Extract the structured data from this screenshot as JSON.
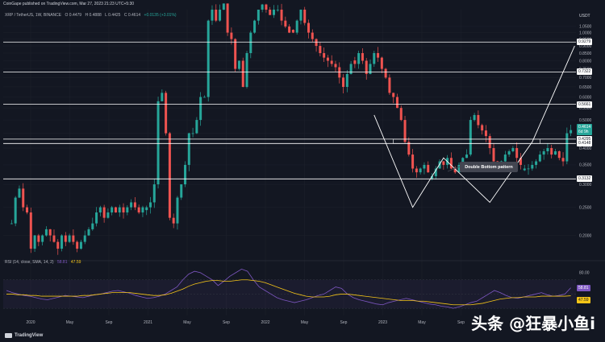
{
  "header": {
    "publisher_line": "CoinGape published on TradingView.com, Mar 27, 2023 21:23 UTC+5:30",
    "symbol": "XRP / TetherUS, 1W, BINANCE",
    "ohlc": [
      "O 0.4479",
      "H 0.4888",
      "L 0.4425",
      "C 0.4614",
      "+0.0135 (+3.01%)"
    ],
    "currency": "USDT"
  },
  "rsi_legend": {
    "label": "RSI (14, close, SMA, 14, 2)",
    "rsi_value": "58.81",
    "sma_value": "47.59"
  },
  "footer": {
    "brand": "TradingView",
    "watermark": "头条 @狂暴小鱼i"
  },
  "annotation": {
    "label": "Double Bottom pattern"
  },
  "colors": {
    "background": "#131722",
    "up": "#26a69a",
    "down": "#ef5350",
    "rsi_line": "#7e57c2",
    "rsi_sma": "#f5c518",
    "price_tag_current": "#26a69a",
    "line_white": "#ffffff"
  },
  "chart_data": [
    {
      "type": "candlestick",
      "title": "XRP / TetherUS, 1W, BINANCE",
      "ylabel": "USDT",
      "y_scale": "log",
      "ylim": [
        0.17,
        1.2
      ],
      "y_ticks": [
        "1.0500",
        "1.0000",
        "0.9500",
        "0.9000",
        "0.8500",
        "0.8000",
        "0.7500",
        "0.7000",
        "0.6500",
        "0.6000",
        "0.5500",
        "0.5000",
        "0.4500",
        "0.4000",
        "0.3500",
        "0.3000",
        "0.2500",
        "0.2000"
      ],
      "x_ticks": [
        "2020",
        "May",
        "Sep",
        "2021",
        "May",
        "Sep",
        "2022",
        "May",
        "Sep",
        "2023",
        "May",
        "Sep"
      ],
      "horizontal_levels": [
        0.9279,
        0.7322,
        0.5661,
        0.4295,
        0.4148,
        0.3132
      ],
      "level_labels": [
        "0.9279",
        "0.7322",
        "0.5661",
        "0.4295",
        "0.4148",
        "0.3132"
      ],
      "last_price": {
        "value": "0.4614",
        "sub": "6d 9h"
      },
      "series": [
        {
          "segment": "early-2020 range",
          "start_week": 0,
          "weeks": 35,
          "points": [
            0.22,
            0.27,
            0.29,
            0.25,
            0.24,
            0.18,
            0.2,
            0.19,
            0.2,
            0.21,
            0.2,
            0.19,
            0.18,
            0.2,
            0.19,
            0.2,
            0.19,
            0.18,
            0.19,
            0.2,
            0.21,
            0.22,
            0.24,
            0.25,
            0.23,
            0.24,
            0.25,
            0.24,
            0.25,
            0.24,
            0.25,
            0.26,
            0.25,
            0.24,
            0.25
          ]
        },
        {
          "segment": "late-2020 rally",
          "start_week": 35,
          "weeks": 12,
          "points": [
            0.25,
            0.26,
            0.3,
            0.58,
            0.62,
            0.45,
            0.23,
            0.22,
            0.27,
            0.3,
            0.35,
            0.45
          ]
        },
        {
          "segment": "2021 bull run",
          "start_week": 47,
          "weeks": 26,
          "points": [
            0.45,
            0.5,
            0.6,
            0.6,
            1.1,
            1.2,
            1.1,
            1.2,
            1.3,
            1.0,
            0.95,
            0.75,
            0.8,
            0.65,
            0.85,
            1.0,
            1.1,
            1.2,
            1.25,
            1.2,
            1.15,
            1.2,
            1.2,
            1.1,
            1.05,
            1.0
          ]
        },
        {
          "segment": "2021 H2 decline",
          "start_week": 73,
          "weeks": 16,
          "points": [
            1.0,
            1.1,
            1.2,
            1.08,
            1.0,
            0.95,
            0.9,
            0.85,
            0.82,
            0.8,
            0.78,
            0.76,
            0.7,
            0.65,
            0.72,
            0.78
          ]
        },
        {
          "segment": "2022 decline",
          "start_week": 89,
          "weeks": 20,
          "points": [
            0.78,
            0.85,
            0.8,
            0.72,
            0.78,
            0.85,
            0.82,
            0.75,
            0.7,
            0.62,
            0.6,
            0.55,
            0.5,
            0.42,
            0.38,
            0.34,
            0.33,
            0.34,
            0.35,
            0.33
          ]
        },
        {
          "segment": "2022 H2 double bottom",
          "start_week": 109,
          "weeks": 24,
          "points": [
            0.32,
            0.34,
            0.36,
            0.35,
            0.37,
            0.34,
            0.33,
            0.35,
            0.37,
            0.38,
            0.5,
            0.52,
            0.48,
            0.46,
            0.44,
            0.4,
            0.36,
            0.35,
            0.36,
            0.38,
            0.39,
            0.4,
            0.37,
            0.35
          ]
        },
        {
          "segment": "2023 breakout",
          "start_week": 133,
          "weeks": 13,
          "points": [
            0.34,
            0.34,
            0.35,
            0.36,
            0.38,
            0.39,
            0.4,
            0.38,
            0.39,
            0.37,
            0.36,
            0.45,
            0.4614
          ]
        }
      ]
    },
    {
      "type": "line",
      "title": "RSI (14, close, SMA, 14, 2)",
      "ylim": [
        20,
        90
      ],
      "y_ticks": [
        "80.00",
        "60.00",
        "40.00"
      ],
      "series": [
        {
          "name": "RSI",
          "values": [
            55,
            52,
            50,
            48,
            47,
            45,
            43,
            42,
            44,
            46,
            48,
            47,
            46,
            45,
            47,
            49,
            50,
            52,
            54,
            55,
            53,
            51,
            48,
            46,
            44,
            45,
            47,
            50,
            55,
            60,
            70,
            78,
            82,
            80,
            75,
            70,
            62,
            68,
            75,
            80,
            85,
            82,
            70,
            60,
            55,
            50,
            45,
            42,
            40,
            38,
            40,
            42,
            45,
            48,
            50,
            55,
            60,
            58,
            50,
            45,
            42,
            40,
            38,
            36,
            35,
            38,
            40,
            42,
            44,
            42,
            40,
            38,
            36,
            35,
            33,
            32,
            30,
            32,
            35,
            38,
            40,
            45,
            50,
            55,
            52,
            48,
            45,
            44,
            46,
            48,
            50,
            52,
            49,
            47,
            48,
            50,
            58.81
          ]
        },
        {
          "name": "SMA",
          "values": [
            50,
            50,
            49,
            49,
            48,
            48,
            47,
            47,
            47,
            47,
            47,
            47,
            47,
            48,
            48,
            49,
            50,
            51,
            52,
            52,
            52,
            52,
            51,
            50,
            49,
            48,
            48,
            49,
            51,
            54,
            57,
            61,
            64,
            66,
            68,
            69,
            69,
            68,
            68,
            69,
            70,
            70,
            69,
            68,
            66,
            63,
            60,
            57,
            54,
            51,
            49,
            47,
            46,
            46,
            46,
            47,
            49,
            50,
            50,
            49,
            48,
            47,
            46,
            45,
            44,
            43,
            42,
            41,
            41,
            41,
            40,
            40,
            39,
            38,
            37,
            36,
            35,
            35,
            35,
            35,
            36,
            37,
            39,
            41,
            43,
            44,
            45,
            45,
            46,
            46,
            46,
            47,
            47,
            47,
            47,
            47,
            47.59
          ]
        }
      ]
    }
  ]
}
